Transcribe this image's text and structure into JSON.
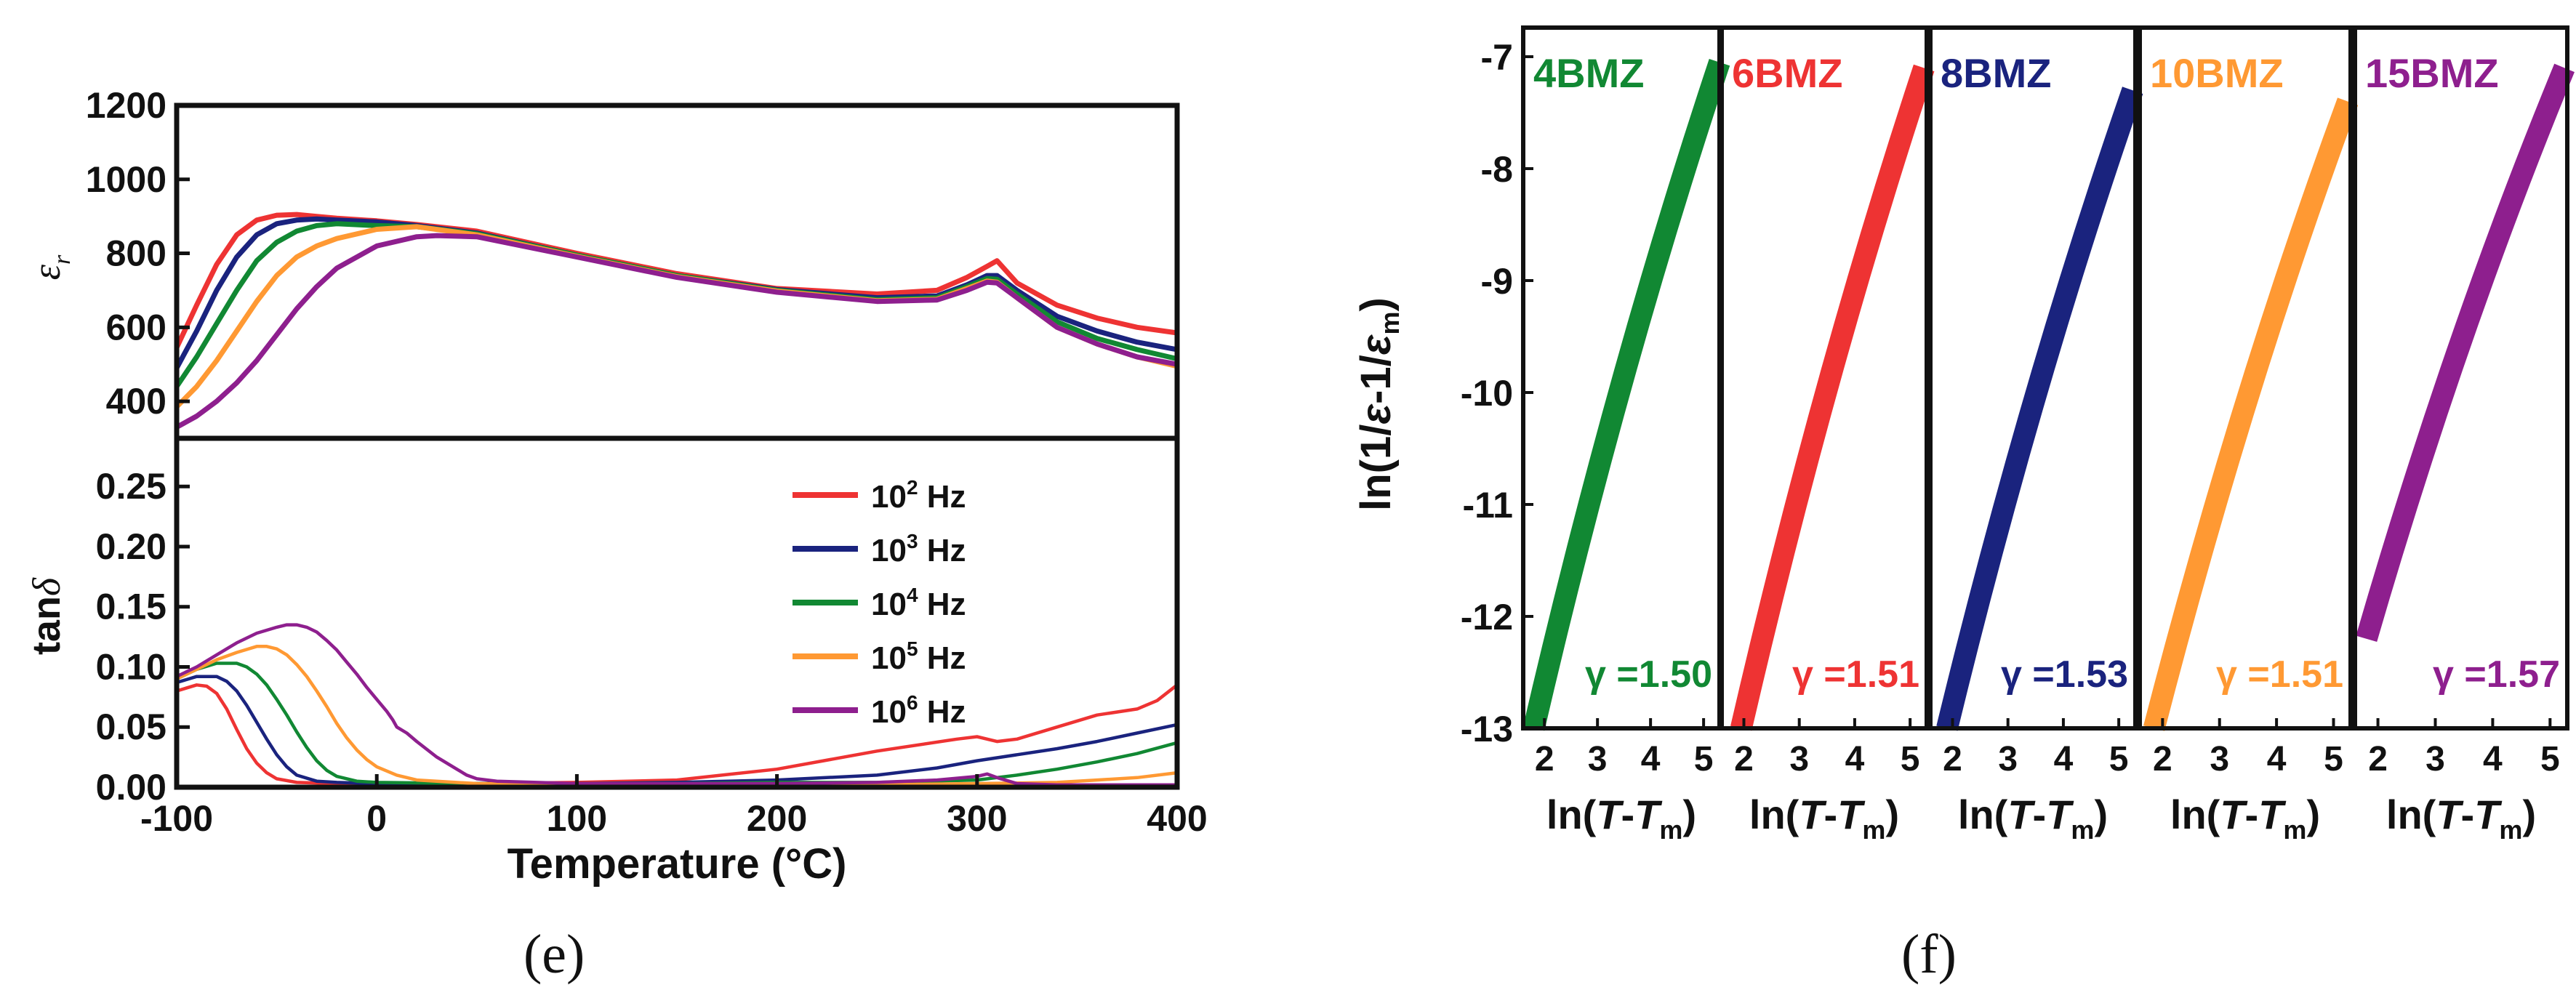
{
  "figure": {
    "caption_e": "(e)",
    "caption_f": "(f)"
  },
  "chart_data": [
    {
      "type": "line",
      "panel": "e-top",
      "title": "",
      "ylabel": "εr",
      "xlim": [
        -100,
        400
      ],
      "ylim": [
        300,
        1200
      ],
      "yticks": [
        400,
        600,
        800,
        1000,
        1200
      ],
      "series": [
        {
          "name": "10^2 Hz",
          "color": "#ee3333",
          "x": [
            -100,
            -90,
            -80,
            -70,
            -60,
            -50,
            -40,
            -30,
            -20,
            0,
            20,
            50,
            100,
            150,
            200,
            250,
            280,
            295,
            305,
            310,
            320,
            340,
            360,
            380,
            400
          ],
          "y": [
            545,
            660,
            770,
            850,
            890,
            903,
            905,
            900,
            895,
            888,
            878,
            860,
            800,
            745,
            705,
            690,
            700,
            735,
            765,
            780,
            720,
            660,
            625,
            600,
            585
          ]
        },
        {
          "name": "10^3 Hz",
          "color": "#1a237e",
          "x": [
            -100,
            -90,
            -80,
            -70,
            -60,
            -50,
            -40,
            -30,
            -20,
            0,
            20,
            50,
            100,
            150,
            200,
            250,
            280,
            295,
            305,
            310,
            320,
            340,
            360,
            380,
            400
          ],
          "y": [
            490,
            590,
            700,
            790,
            850,
            880,
            890,
            893,
            890,
            885,
            875,
            855,
            795,
            740,
            702,
            680,
            685,
            715,
            740,
            740,
            700,
            630,
            590,
            560,
            540
          ]
        },
        {
          "name": "10^4 Hz",
          "color": "#118833",
          "x": [
            -100,
            -90,
            -80,
            -70,
            -60,
            -50,
            -40,
            -30,
            -20,
            0,
            20,
            50,
            100,
            150,
            200,
            250,
            280,
            295,
            305,
            310,
            320,
            340,
            360,
            380,
            400
          ],
          "y": [
            440,
            520,
            610,
            700,
            780,
            830,
            860,
            875,
            880,
            875,
            872,
            853,
            795,
            740,
            700,
            675,
            680,
            710,
            732,
            730,
            690,
            615,
            570,
            540,
            515
          ]
        },
        {
          "name": "10^5 Hz",
          "color": "#ff9933",
          "x": [
            -100,
            -90,
            -80,
            -70,
            -60,
            -50,
            -40,
            -30,
            -20,
            0,
            20,
            50,
            100,
            150,
            200,
            250,
            280,
            295,
            305,
            310,
            320,
            340,
            360,
            380,
            400
          ],
          "y": [
            385,
            440,
            510,
            590,
            670,
            740,
            790,
            820,
            840,
            865,
            872,
            850,
            792,
            737,
            698,
            672,
            676,
            705,
            725,
            722,
            680,
            600,
            555,
            520,
            495
          ]
        },
        {
          "name": "10^6 Hz",
          "color": "#8e1f8e",
          "x": [
            -100,
            -90,
            -80,
            -70,
            -60,
            -50,
            -40,
            -30,
            -20,
            0,
            20,
            30,
            50,
            100,
            150,
            200,
            250,
            280,
            295,
            305,
            310,
            320,
            340,
            360,
            380,
            400
          ],
          "y": [
            330,
            360,
            400,
            450,
            510,
            580,
            650,
            710,
            760,
            820,
            845,
            848,
            845,
            790,
            735,
            695,
            670,
            674,
            700,
            722,
            720,
            680,
            600,
            555,
            520,
            500
          ]
        }
      ]
    },
    {
      "type": "line",
      "panel": "e-bottom",
      "xlabel": "Temperature (°C)",
      "ylabel": "tanδ",
      "xlim": [
        -100,
        400
      ],
      "ylim": [
        0,
        0.29
      ],
      "xticks": [
        -100,
        0,
        100,
        200,
        300,
        400
      ],
      "xtick_labels": [
        "-100",
        "0",
        "100",
        "200",
        "300",
        "400"
      ],
      "yticks": [
        0.0,
        0.05,
        0.1,
        0.15,
        0.2,
        0.25
      ],
      "ytick_labels": [
        "0.00",
        "0.05",
        "0.10",
        "0.15",
        "0.20",
        "0.25"
      ],
      "legend": {
        "position": "center-right",
        "entries": [
          {
            "base": "10",
            "exp": "2",
            "unit": "Hz",
            "color": "#ee3333"
          },
          {
            "base": "10",
            "exp": "3",
            "unit": "Hz",
            "color": "#1a237e"
          },
          {
            "base": "10",
            "exp": "4",
            "unit": "Hz",
            "color": "#118833"
          },
          {
            "base": "10",
            "exp": "5",
            "unit": "Hz",
            "color": "#ff9933"
          },
          {
            "base": "10",
            "exp": "6",
            "unit": "Hz",
            "color": "#8e1f8e"
          }
        ]
      },
      "series": [
        {
          "name": "10^2 Hz",
          "color": "#ee3333",
          "x": [
            -100,
            -90,
            -85,
            -80,
            -75,
            -70,
            -65,
            -60,
            -55,
            -50,
            -40,
            -20,
            0,
            50,
            100,
            150,
            200,
            250,
            290,
            300,
            310,
            320,
            340,
            360,
            380,
            390,
            400
          ],
          "y": [
            0.08,
            0.085,
            0.084,
            0.078,
            0.065,
            0.048,
            0.032,
            0.02,
            0.012,
            0.007,
            0.004,
            0.003,
            0.003,
            0.003,
            0.004,
            0.006,
            0.015,
            0.03,
            0.04,
            0.042,
            0.038,
            0.04,
            0.05,
            0.06,
            0.065,
            0.072,
            0.085
          ]
        },
        {
          "name": "10^3 Hz",
          "color": "#1a237e",
          "x": [
            -100,
            -90,
            -80,
            -75,
            -70,
            -65,
            -60,
            -55,
            -50,
            -45,
            -40,
            -30,
            -20,
            0,
            50,
            100,
            150,
            200,
            250,
            280,
            300,
            320,
            340,
            360,
            380,
            400
          ],
          "y": [
            0.087,
            0.092,
            0.092,
            0.088,
            0.08,
            0.068,
            0.054,
            0.04,
            0.027,
            0.017,
            0.01,
            0.005,
            0.004,
            0.003,
            0.003,
            0.003,
            0.004,
            0.006,
            0.01,
            0.016,
            0.022,
            0.027,
            0.032,
            0.038,
            0.045,
            0.052
          ]
        },
        {
          "name": "10^4 Hz",
          "color": "#118833",
          "x": [
            -100,
            -90,
            -80,
            -70,
            -65,
            -60,
            -55,
            -50,
            -45,
            -40,
            -35,
            -30,
            -25,
            -20,
            -10,
            0,
            50,
            100,
            150,
            200,
            250,
            300,
            320,
            340,
            360,
            380,
            400
          ],
          "y": [
            0.09,
            0.098,
            0.103,
            0.103,
            0.1,
            0.094,
            0.085,
            0.073,
            0.06,
            0.046,
            0.033,
            0.022,
            0.014,
            0.009,
            0.005,
            0.004,
            0.003,
            0.003,
            0.003,
            0.004,
            0.004,
            0.006,
            0.01,
            0.015,
            0.021,
            0.028,
            0.037
          ]
        },
        {
          "name": "10^5 Hz",
          "color": "#ff9933",
          "x": [
            -100,
            -90,
            -80,
            -70,
            -60,
            -55,
            -50,
            -45,
            -40,
            -35,
            -30,
            -25,
            -20,
            -15,
            -10,
            -5,
            0,
            10,
            20,
            50,
            100,
            150,
            200,
            250,
            300,
            340,
            360,
            380,
            400
          ],
          "y": [
            0.09,
            0.098,
            0.106,
            0.112,
            0.117,
            0.117,
            0.115,
            0.11,
            0.102,
            0.092,
            0.08,
            0.067,
            0.053,
            0.041,
            0.031,
            0.023,
            0.017,
            0.01,
            0.006,
            0.003,
            0.002,
            0.002,
            0.002,
            0.002,
            0.003,
            0.004,
            0.006,
            0.008,
            0.012
          ]
        },
        {
          "name": "10^6 Hz",
          "color": "#8e1f8e",
          "x": [
            -100,
            -90,
            -80,
            -70,
            -60,
            -50,
            -45,
            -40,
            -35,
            -30,
            -25,
            -20,
            -15,
            -10,
            -5,
            0,
            5,
            8,
            10,
            15,
            20,
            30,
            40,
            45,
            50,
            60,
            80,
            100,
            150,
            200,
            250,
            280,
            300,
            305,
            310,
            320,
            340,
            400
          ],
          "y": [
            0.092,
            0.1,
            0.11,
            0.12,
            0.128,
            0.133,
            0.135,
            0.135,
            0.133,
            0.129,
            0.122,
            0.114,
            0.104,
            0.094,
            0.083,
            0.073,
            0.063,
            0.056,
            0.05,
            0.045,
            0.038,
            0.025,
            0.015,
            0.01,
            0.007,
            0.005,
            0.004,
            0.003,
            0.003,
            0.003,
            0.004,
            0.006,
            0.009,
            0.011,
            0.008,
            0.003,
            0.002,
            0.002
          ]
        }
      ]
    },
    {
      "type": "scatter",
      "panel": "f",
      "ylabel": "ln(1/ε-1/εm)",
      "ylim": [
        -13,
        -7
      ],
      "yticks": [
        -13,
        -12,
        -11,
        -10,
        -9,
        -8,
        -7
      ],
      "ytick_labels": [
        "-13",
        "-12",
        "-11",
        "-10",
        "-9",
        "-8",
        "-7"
      ],
      "xlim": [
        1.6,
        5.3
      ],
      "xticks": [
        2,
        3,
        4,
        5
      ],
      "xtick_labels": [
        "2",
        "3",
        "4",
        "5"
      ],
      "xlabel": "ln(T-Tm)",
      "panels": [
        {
          "name": "4BMZ",
          "color": "#118833",
          "gamma_label": "γ =1.50",
          "x_start": 1.8,
          "y_start": -13.0,
          "x_end": 5.3,
          "y_end": -7.05
        },
        {
          "name": "6BMZ",
          "color": "#ee3333",
          "x_start": 1.95,
          "y_start": -13.0,
          "x_end": 5.25,
          "y_end": -7.1,
          "gamma_label": "γ =1.51"
        },
        {
          "name": "8BMZ",
          "color": "#1a237e",
          "x_start": 1.9,
          "y_start": -13.0,
          "x_end": 5.25,
          "y_end": -7.3,
          "gamma_label": "γ =1.53"
        },
        {
          "name": "10BMZ",
          "color": "#ff9933",
          "x_start": 1.85,
          "y_start": -13.0,
          "x_end": 5.25,
          "y_end": -7.4,
          "gamma_label": "γ =1.51"
        },
        {
          "name": "15BMZ",
          "color": "#8e1f8e",
          "x_start": 1.8,
          "y_start": -12.2,
          "x_end": 5.25,
          "y_end": -7.1,
          "gamma_label": "γ =1.57"
        }
      ]
    }
  ]
}
